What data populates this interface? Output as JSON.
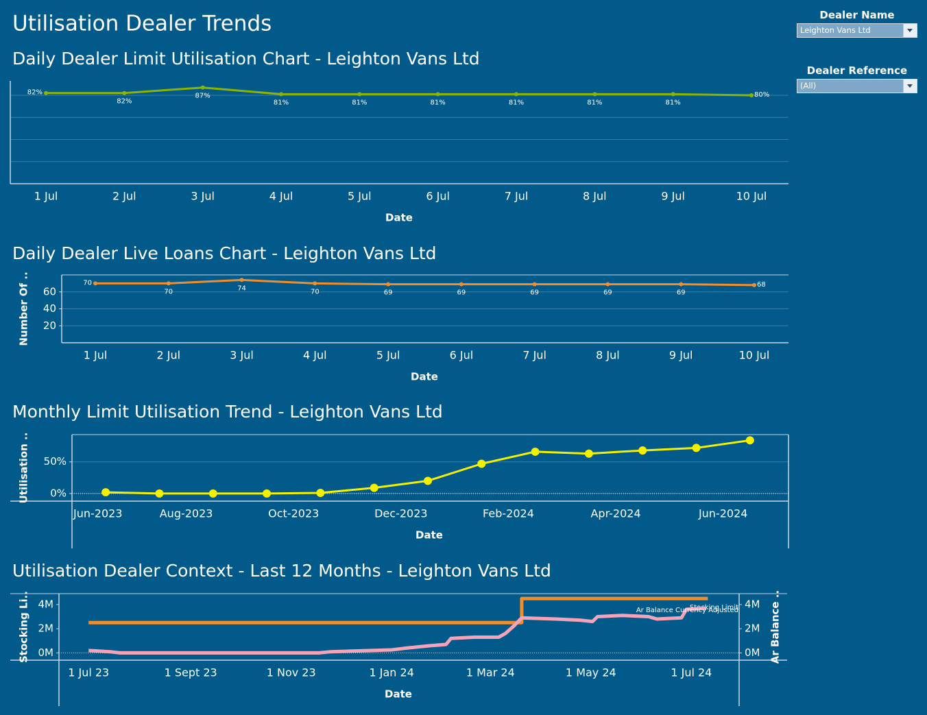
{
  "title": "Utilisation Dealer Trends",
  "filters": [
    {
      "label": "Dealer Name",
      "value": "Leighton Vans Ltd"
    },
    {
      "label": "Dealer Reference",
      "value": "(All)"
    }
  ],
  "chart_data": [
    {
      "type": "line",
      "title": "Daily Dealer Limit Utilisation Chart - Leighton Vans Ltd",
      "xlabel": "Date",
      "categories": [
        "1 Jul",
        "2 Jul",
        "3 Jul",
        "4 Jul",
        "5 Jul",
        "6 Jul",
        "7 Jul",
        "8 Jul",
        "9 Jul",
        "10 Jul"
      ],
      "values": [
        82,
        82,
        87,
        81,
        81,
        81,
        81,
        81,
        81,
        80
      ],
      "value_labels": [
        "82%",
        "82%",
        "87%",
        "81%",
        "81%",
        "81%",
        "81%",
        "81%",
        "81%",
        "80%"
      ],
      "color": "#8cb400",
      "ylim": [
        0,
        93
      ],
      "yticks": [
        0,
        20,
        40,
        60,
        80
      ],
      "tick_labels": false,
      "grid": true,
      "markers": true,
      "data_labels": true
    },
    {
      "type": "line",
      "title": "Daily Dealer Live Loans Chart - Leighton Vans Ltd",
      "xlabel": "Date",
      "ylabel": "Number Of ..",
      "categories": [
        "1 Jul",
        "2 Jul",
        "3 Jul",
        "4 Jul",
        "5 Jul",
        "6 Jul",
        "7 Jul",
        "8 Jul",
        "9 Jul",
        "10 Jul"
      ],
      "values": [
        70,
        70,
        74,
        70,
        69,
        69,
        69,
        69,
        69,
        68
      ],
      "color": "#f28e2b",
      "ylim": [
        0,
        80
      ],
      "yticks": [
        20,
        40,
        60
      ],
      "grid": true,
      "markers": true,
      "data_labels": true
    },
    {
      "type": "line",
      "title": "Monthly Limit Utilisation Trend - Leighton Vans Ltd",
      "xlabel": "Date",
      "ylabel": "Utilisation ..",
      "x": [
        "2023-06",
        "2023-07",
        "2023-08",
        "2023-09",
        "2023-10",
        "2023-11",
        "2023-12",
        "2024-01",
        "2024-02",
        "2024-03",
        "2024-04",
        "2024-05",
        "2024-06"
      ],
      "values": [
        2,
        0,
        0,
        0,
        1,
        9,
        20,
        47,
        66,
        63,
        68,
        72,
        84
      ],
      "color": "#f5f000",
      "xlim": [
        "2023-06",
        "2024-07"
      ],
      "xticks": [
        {
          "value": "2023-06",
          "label": "Jun-2023"
        },
        {
          "value": "2023-08",
          "label": "Aug-2023"
        },
        {
          "value": "2023-10",
          "label": "Oct-2023"
        },
        {
          "value": "2023-12",
          "label": "Dec-2023"
        },
        {
          "value": "2024-02",
          "label": "Feb-2024"
        },
        {
          "value": "2024-04",
          "label": "Apr-2024"
        },
        {
          "value": "2024-06",
          "label": "Jun-2024"
        }
      ],
      "ylim": [
        -12,
        93
      ],
      "yticks": [
        {
          "value": 0,
          "label": "0%"
        },
        {
          "value": 50,
          "label": "50%"
        }
      ],
      "grid": true,
      "zero_line": true,
      "markers": true
    },
    {
      "type": "line",
      "title": "Utilisation Dealer Context - Last 12 Months - Leighton Vans Ltd",
      "xlabel": "Date",
      "ylabel": "Stocking Li..",
      "y2label": "Ar Balance ..",
      "xlim": [
        "2023-06-13",
        "2024-07-30"
      ],
      "xticks": [
        {
          "value": "2023-07-01",
          "label": "1 Jul 23"
        },
        {
          "value": "2023-09-01",
          "label": "1 Sept 23"
        },
        {
          "value": "2023-11-01",
          "label": "1 Nov 23"
        },
        {
          "value": "2024-01-01",
          "label": "1 Jan 24"
        },
        {
          "value": "2024-03-01",
          "label": "1 Mar 24"
        },
        {
          "value": "2024-05-01",
          "label": "1 May 24"
        },
        {
          "value": "2024-07-01",
          "label": "1 Jul 24"
        }
      ],
      "ylim": [
        -0.6,
        4.9
      ],
      "yticks": [
        {
          "value": 0,
          "label": "0M"
        },
        {
          "value": 2,
          "label": "2M"
        },
        {
          "value": 4,
          "label": "4M"
        }
      ],
      "y2lim": [
        -0.6,
        4.9
      ],
      "y2ticks": [
        {
          "value": 0,
          "label": "0M"
        },
        {
          "value": 2,
          "label": "2M"
        },
        {
          "value": 4,
          "label": "4M"
        }
      ],
      "grid": false,
      "zero_line": true,
      "series_labels": true,
      "series": [
        {
          "name": "Stocking Limit",
          "color": "#f28e2b",
          "x": [
            "2023-07-01",
            "2024-03-20",
            "2024-03-20",
            "2024-07-11"
          ],
          "values": [
            2.5,
            2.5,
            4.5,
            4.5
          ]
        },
        {
          "name": "Ar Balance Currency Adjusted",
          "color": "#f4a3b8",
          "axis": "y2",
          "x": [
            "2023-07-01",
            "2023-07-14",
            "2023-07-20",
            "2023-11-18",
            "2023-11-25",
            "2023-12-20",
            "2024-01-01",
            "2024-01-10",
            "2024-01-25",
            "2024-02-03",
            "2024-02-06",
            "2024-02-20",
            "2024-03-06",
            "2024-03-10",
            "2024-03-15",
            "2024-03-20",
            "2024-04-10",
            "2024-04-25",
            "2024-05-02",
            "2024-05-05",
            "2024-05-20",
            "2024-06-05",
            "2024-06-10",
            "2024-06-25",
            "2024-06-28",
            "2024-07-10"
          ],
          "values": [
            0.2,
            0.1,
            0.0,
            0.0,
            0.1,
            0.2,
            0.25,
            0.4,
            0.6,
            0.7,
            1.2,
            1.3,
            1.3,
            1.6,
            2.2,
            2.9,
            2.8,
            2.7,
            2.6,
            3.0,
            3.1,
            3.0,
            2.8,
            2.9,
            3.6,
            3.7
          ]
        }
      ]
    }
  ]
}
